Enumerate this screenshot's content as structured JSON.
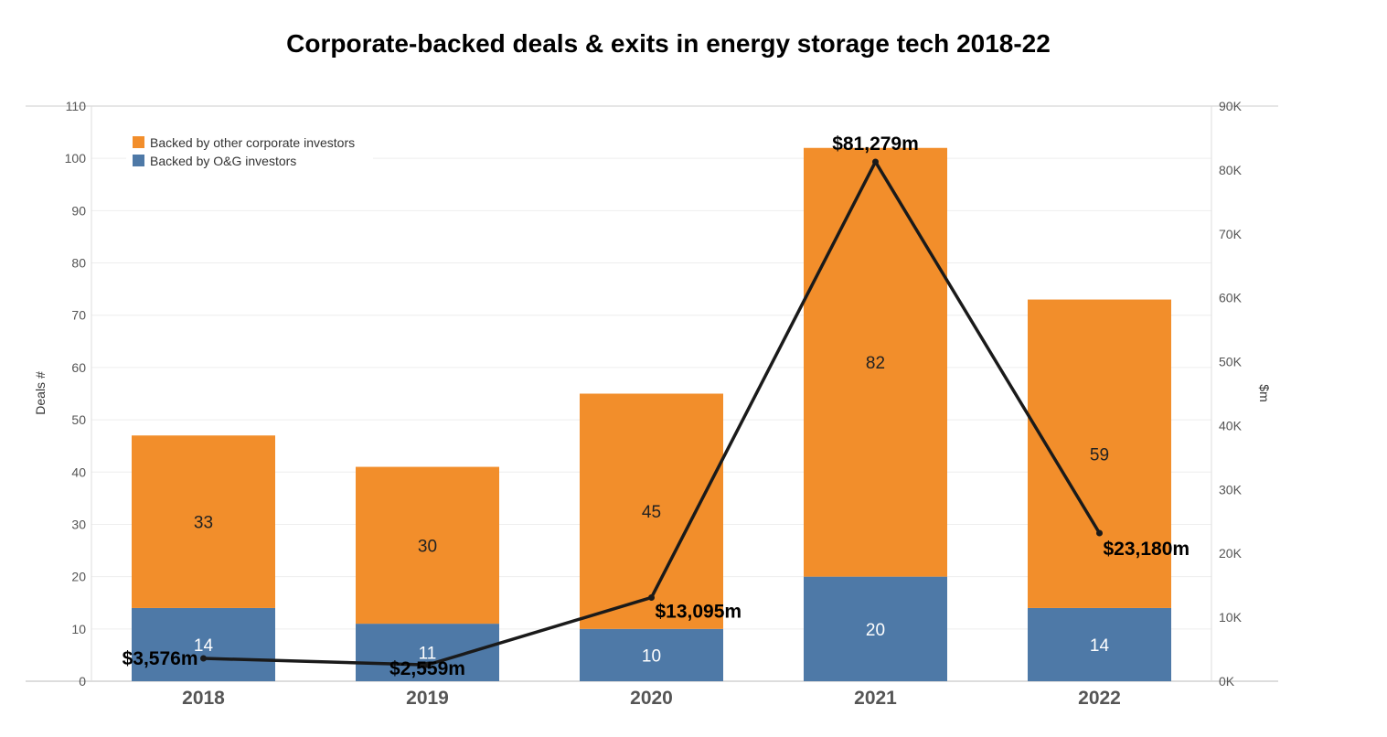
{
  "chart_data": {
    "type": "bar",
    "stacked": true,
    "title": "Corporate-backed deals & exits in energy storage tech 2018-22",
    "categories": [
      "2018",
      "2019",
      "2020",
      "2021",
      "2022"
    ],
    "y_left": {
      "label": "Deals #",
      "range": [
        0,
        110
      ],
      "ticks": [
        0,
        10,
        20,
        30,
        40,
        50,
        60,
        70,
        80,
        90,
        100,
        110
      ],
      "tick_labels": [
        "0",
        "10",
        "20",
        "30",
        "40",
        "50",
        "60",
        "70",
        "80",
        "90",
        "100",
        "110"
      ]
    },
    "y_right": {
      "label": "$m",
      "range": [
        0,
        90000
      ],
      "ticks": [
        0,
        10000,
        20000,
        30000,
        40000,
        50000,
        60000,
        70000,
        80000,
        90000
      ],
      "tick_labels": [
        "0K",
        "10K",
        "20K",
        "30K",
        "40K",
        "50K",
        "60K",
        "70K",
        "80K",
        "90K"
      ]
    },
    "series": [
      {
        "name": "Backed by O&G investors",
        "kind": "bar",
        "color": "#4e79a7",
        "label_color": "#ffffff",
        "values": [
          14,
          11,
          10,
          20,
          14
        ],
        "labels": [
          "14",
          "11",
          "10",
          "20",
          "14"
        ]
      },
      {
        "name": "Backed by other corporate investors",
        "kind": "bar",
        "color": "#f28e2b",
        "label_color": "#222222",
        "values": [
          33,
          30,
          45,
          82,
          59
        ],
        "labels": [
          "33",
          "30",
          "45",
          "82",
          "59"
        ]
      },
      {
        "kind": "line",
        "axis": "right",
        "color": "#1a1a1a",
        "values": [
          3576,
          2559,
          13095,
          81279,
          23180
        ],
        "labels": [
          "$3,576m",
          "$2,559m",
          "$13,095m",
          "$81,279m",
          "$23,180m"
        ]
      }
    ],
    "legend": {
      "position": "top-left",
      "entries": [
        "Backed by other corporate investors",
        "Backed by O&G investors"
      ],
      "colors": [
        "#f28e2b",
        "#4e79a7"
      ]
    },
    "grid": true
  }
}
